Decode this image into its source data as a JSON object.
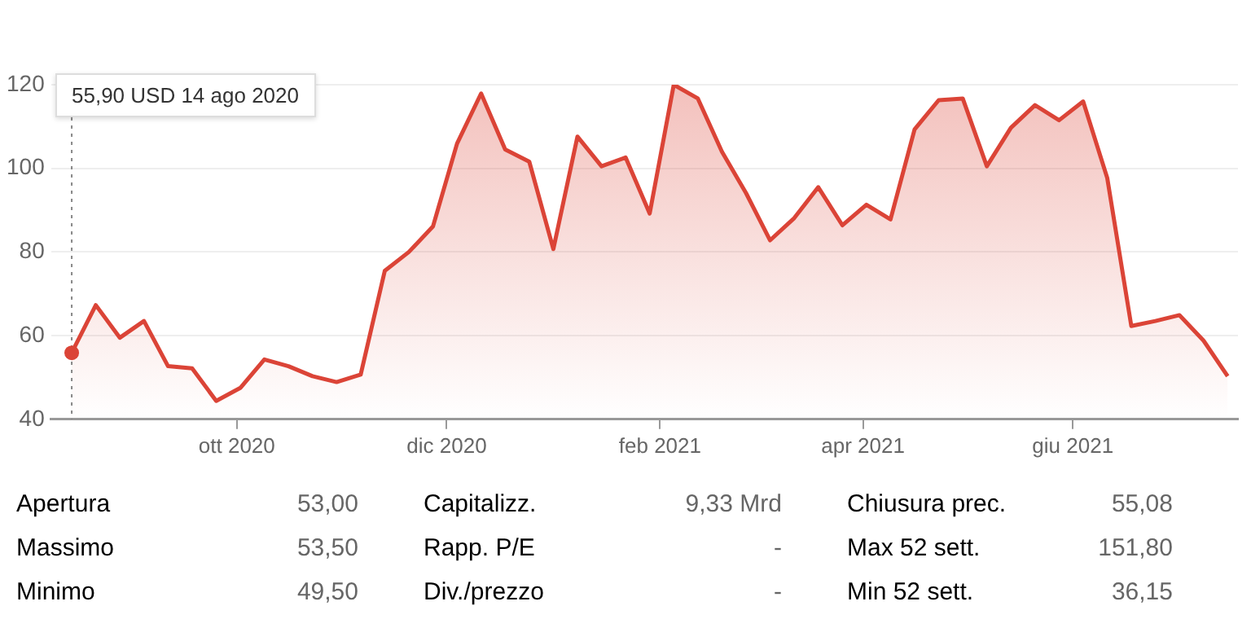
{
  "chart_data": {
    "type": "area",
    "x": [
      "2020-08-14",
      "2020-08-21",
      "2020-08-28",
      "2020-09-04",
      "2020-09-11",
      "2020-09-18",
      "2020-09-25",
      "2020-10-02",
      "2020-10-09",
      "2020-10-16",
      "2020-10-23",
      "2020-10-30",
      "2020-11-06",
      "2020-11-13",
      "2020-11-20",
      "2020-11-27",
      "2020-12-04",
      "2020-12-11",
      "2020-12-18",
      "2020-12-25",
      "2021-01-01",
      "2021-01-08",
      "2021-01-15",
      "2021-01-22",
      "2021-01-29",
      "2021-02-05",
      "2021-02-12",
      "2021-02-19",
      "2021-02-26",
      "2021-03-05",
      "2021-03-12",
      "2021-03-19",
      "2021-03-26",
      "2021-04-02",
      "2021-04-09",
      "2021-04-16",
      "2021-04-23",
      "2021-04-30",
      "2021-05-07",
      "2021-05-14",
      "2021-05-21",
      "2021-05-28",
      "2021-06-04",
      "2021-06-11",
      "2021-06-18",
      "2021-06-25",
      "2021-07-02",
      "2021-07-09",
      "2021-07-16"
    ],
    "series": [
      {
        "color": "#db4437",
        "values": [
          55.9,
          67.3,
          59.5,
          63.5,
          52.7,
          52.2,
          44.4,
          47.5,
          54.3,
          52.7,
          50.3,
          48.9,
          50.7,
          75.5,
          80,
          86.1,
          105.9,
          117.9,
          104.5,
          101.6,
          80.7,
          107.6,
          100.5,
          102.6,
          89.2,
          120,
          116.7,
          104,
          94.1,
          82.8,
          88.1,
          95.5,
          86.4,
          91.3,
          87.8,
          109.3,
          116.3,
          116.7,
          100.5,
          109.7,
          115.1,
          111.5,
          116,
          97.7,
          62.3,
          63.5,
          64.9,
          58.8,
          50.3
        ]
      }
    ],
    "xlim": [
      "2020-08-08",
      "2021-07-19"
    ],
    "xticks": [
      {
        "value": "2020-10-01",
        "label": "ott 2020"
      },
      {
        "value": "2020-12-01",
        "label": "dic 2020"
      },
      {
        "value": "2021-02-01",
        "label": "feb 2021"
      },
      {
        "value": "2021-04-01",
        "label": "apr 2021"
      },
      {
        "value": "2021-06-01",
        "label": "giu 2021"
      }
    ],
    "ylim": [
      40,
      120
    ],
    "yticks": [
      40,
      60,
      80,
      100,
      120
    ],
    "grid": "y",
    "legend": false,
    "ref_lines": [
      {
        "axis": "x",
        "value": "2020-08-14",
        "label": "55,90 USD  14 ago 2020",
        "color": "#888888",
        "line_style": "dotted"
      }
    ],
    "annotations": [
      "Apertura",
      "53,00",
      "Capitalizz.",
      "9,33 Mrd",
      "Chiusura prec.",
      "55,08",
      "Massimo",
      "53,50",
      "Rapp. P/E",
      "-",
      "Max 52 sett.",
      "151,80",
      "Minimo",
      "49,50",
      "Div./prezzo",
      "-",
      "Min 52 sett.",
      "36,15"
    ]
  }
}
